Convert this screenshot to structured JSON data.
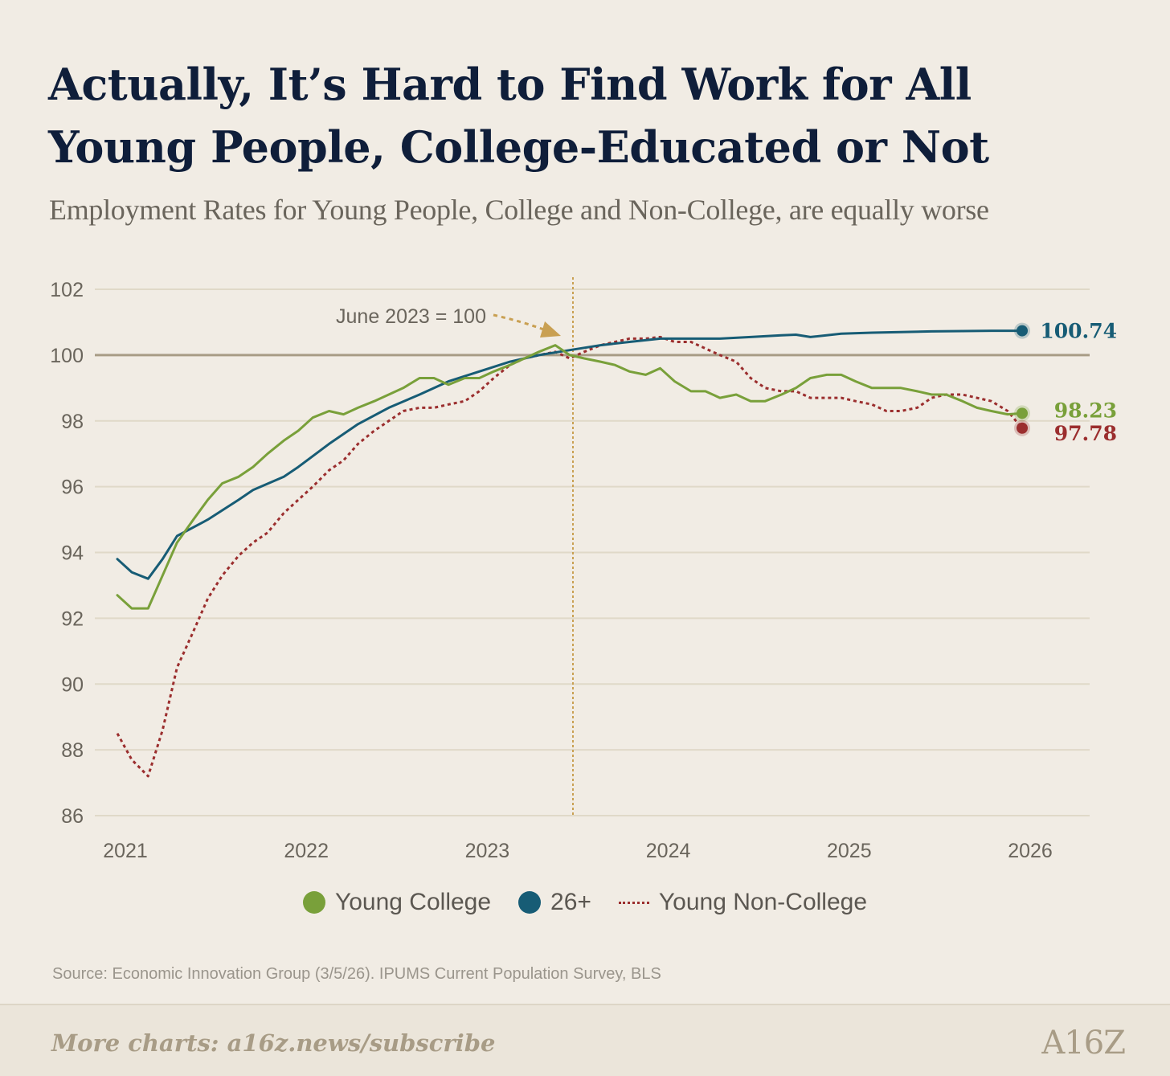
{
  "header": {
    "title": "Actually, It’s Hard to Find Work for All Young People, College-Educated or Not",
    "subtitle": "Employment Rates for Young People, College and Non-College, are equally worse"
  },
  "chart_data": {
    "type": "line",
    "title": "Actually, It’s Hard to Find Work for All Young People, College-Educated or Not",
    "subtitle": "Employment Rates for Young People, College and Non-College, are equally worse",
    "xlabel": "",
    "ylabel": "",
    "xlim": [
      2021,
      2026.12
    ],
    "ylim": [
      86,
      102
    ],
    "x_ticks": [
      2021,
      2022,
      2023,
      2024,
      2025,
      2026
    ],
    "y_ticks": [
      86,
      88,
      90,
      92,
      94,
      96,
      98,
      100,
      102
    ],
    "grid": "horizontal",
    "reference_line": {
      "y": 100
    },
    "vertical_marker": {
      "x": 2023.5
    },
    "annotation": {
      "text": "June 2023 = 100"
    },
    "legend_position": "bottom-center",
    "series": [
      {
        "name": "Young College",
        "color": "#79a03a",
        "style": "solid",
        "end_label": "98.23",
        "points": [
          [
            2021.0,
            92.7
          ],
          [
            2021.08,
            92.3
          ],
          [
            2021.17,
            92.3
          ],
          [
            2021.25,
            93.3
          ],
          [
            2021.33,
            94.3
          ],
          [
            2021.42,
            95.0
          ],
          [
            2021.5,
            95.6
          ],
          [
            2021.58,
            96.1
          ],
          [
            2021.67,
            96.3
          ],
          [
            2021.75,
            96.6
          ],
          [
            2021.83,
            97.0
          ],
          [
            2021.92,
            97.4
          ],
          [
            2022.0,
            97.7
          ],
          [
            2022.08,
            98.1
          ],
          [
            2022.17,
            98.3
          ],
          [
            2022.25,
            98.2
          ],
          [
            2022.33,
            98.4
          ],
          [
            2022.42,
            98.6
          ],
          [
            2022.5,
            98.8
          ],
          [
            2022.58,
            99.0
          ],
          [
            2022.67,
            99.3
          ],
          [
            2022.75,
            99.3
          ],
          [
            2022.83,
            99.1
          ],
          [
            2022.92,
            99.3
          ],
          [
            2023.0,
            99.3
          ],
          [
            2023.08,
            99.5
          ],
          [
            2023.17,
            99.7
          ],
          [
            2023.25,
            99.9
          ],
          [
            2023.33,
            100.1
          ],
          [
            2023.42,
            100.3
          ],
          [
            2023.5,
            100.0
          ],
          [
            2023.58,
            99.9
          ],
          [
            2023.67,
            99.8
          ],
          [
            2023.75,
            99.7
          ],
          [
            2023.83,
            99.5
          ],
          [
            2023.92,
            99.4
          ],
          [
            2024.0,
            99.6
          ],
          [
            2024.08,
            99.2
          ],
          [
            2024.17,
            98.9
          ],
          [
            2024.25,
            98.9
          ],
          [
            2024.33,
            98.7
          ],
          [
            2024.42,
            98.8
          ],
          [
            2024.5,
            98.6
          ],
          [
            2024.58,
            98.6
          ],
          [
            2024.67,
            98.8
          ],
          [
            2024.75,
            99.0
          ],
          [
            2024.83,
            99.3
          ],
          [
            2024.92,
            99.4
          ],
          [
            2025.0,
            99.4
          ],
          [
            2025.08,
            99.2
          ],
          [
            2025.17,
            99.0
          ],
          [
            2025.25,
            99.0
          ],
          [
            2025.33,
            99.0
          ],
          [
            2025.42,
            98.9
          ],
          [
            2025.5,
            98.8
          ],
          [
            2025.58,
            98.8
          ],
          [
            2025.67,
            98.6
          ],
          [
            2025.75,
            98.4
          ],
          [
            2025.83,
            98.3
          ],
          [
            2025.92,
            98.2
          ],
          [
            2026.0,
            98.23
          ]
        ]
      },
      {
        "name": "26+",
        "color": "#175c75",
        "style": "solid",
        "end_label": "100.74",
        "points": [
          [
            2021.0,
            93.8
          ],
          [
            2021.08,
            93.4
          ],
          [
            2021.17,
            93.2
          ],
          [
            2021.25,
            93.8
          ],
          [
            2021.33,
            94.5
          ],
          [
            2021.5,
            95.0
          ],
          [
            2021.67,
            95.6
          ],
          [
            2021.75,
            95.9
          ],
          [
            2021.92,
            96.3
          ],
          [
            2022.0,
            96.6
          ],
          [
            2022.17,
            97.3
          ],
          [
            2022.33,
            97.9
          ],
          [
            2022.5,
            98.4
          ],
          [
            2022.67,
            98.8
          ],
          [
            2022.83,
            99.2
          ],
          [
            2023.0,
            99.5
          ],
          [
            2023.17,
            99.8
          ],
          [
            2023.33,
            100.0
          ],
          [
            2023.5,
            100.15
          ],
          [
            2023.67,
            100.3
          ],
          [
            2023.83,
            100.4
          ],
          [
            2024.0,
            100.5
          ],
          [
            2024.17,
            100.5
          ],
          [
            2024.33,
            100.5
          ],
          [
            2024.5,
            100.55
          ],
          [
            2024.67,
            100.6
          ],
          [
            2024.75,
            100.62
          ],
          [
            2024.83,
            100.55
          ],
          [
            2025.0,
            100.65
          ],
          [
            2025.17,
            100.68
          ],
          [
            2025.33,
            100.7
          ],
          [
            2025.5,
            100.72
          ],
          [
            2025.67,
            100.73
          ],
          [
            2025.83,
            100.74
          ],
          [
            2026.0,
            100.74
          ]
        ]
      },
      {
        "name": "Young Non-College",
        "color": "#9b2e2e",
        "style": "dotted",
        "end_label": "97.78",
        "points": [
          [
            2021.0,
            88.5
          ],
          [
            2021.08,
            87.7
          ],
          [
            2021.17,
            87.2
          ],
          [
            2021.25,
            88.6
          ],
          [
            2021.33,
            90.5
          ],
          [
            2021.42,
            91.6
          ],
          [
            2021.5,
            92.6
          ],
          [
            2021.58,
            93.3
          ],
          [
            2021.67,
            93.9
          ],
          [
            2021.75,
            94.3
          ],
          [
            2021.83,
            94.6
          ],
          [
            2021.92,
            95.2
          ],
          [
            2022.0,
            95.6
          ],
          [
            2022.08,
            96.0
          ],
          [
            2022.17,
            96.5
          ],
          [
            2022.25,
            96.8
          ],
          [
            2022.33,
            97.3
          ],
          [
            2022.42,
            97.7
          ],
          [
            2022.5,
            98.0
          ],
          [
            2022.58,
            98.3
          ],
          [
            2022.67,
            98.4
          ],
          [
            2022.75,
            98.4
          ],
          [
            2022.83,
            98.5
          ],
          [
            2022.92,
            98.6
          ],
          [
            2023.0,
            98.9
          ],
          [
            2023.08,
            99.3
          ],
          [
            2023.17,
            99.7
          ],
          [
            2023.25,
            99.9
          ],
          [
            2023.33,
            100.0
          ],
          [
            2023.42,
            100.1
          ],
          [
            2023.5,
            99.9
          ],
          [
            2023.58,
            100.1
          ],
          [
            2023.67,
            100.3
          ],
          [
            2023.75,
            100.4
          ],
          [
            2023.83,
            100.5
          ],
          [
            2023.92,
            100.5
          ],
          [
            2024.0,
            100.55
          ],
          [
            2024.08,
            100.4
          ],
          [
            2024.17,
            100.4
          ],
          [
            2024.25,
            100.2
          ],
          [
            2024.33,
            100.0
          ],
          [
            2024.42,
            99.8
          ],
          [
            2024.5,
            99.3
          ],
          [
            2024.58,
            99.0
          ],
          [
            2024.67,
            98.9
          ],
          [
            2024.75,
            98.9
          ],
          [
            2024.83,
            98.7
          ],
          [
            2024.92,
            98.7
          ],
          [
            2025.0,
            98.7
          ],
          [
            2025.08,
            98.6
          ],
          [
            2025.17,
            98.5
          ],
          [
            2025.25,
            98.3
          ],
          [
            2025.33,
            98.3
          ],
          [
            2025.42,
            98.4
          ],
          [
            2025.5,
            98.7
          ],
          [
            2025.58,
            98.8
          ],
          [
            2025.67,
            98.8
          ],
          [
            2025.75,
            98.7
          ],
          [
            2025.83,
            98.6
          ],
          [
            2025.92,
            98.3
          ],
          [
            2026.0,
            97.78
          ]
        ]
      }
    ]
  },
  "footer": {
    "source": "Source: Economic Innovation Group (3/5/26). IPUMS Current Population Survey, BLS",
    "link": "More charts: a16z.news/subscribe",
    "logo": "A16Z"
  },
  "colors": {
    "background": "#f1ece4",
    "grid": "#e0d9c8",
    "reference_line": "#a89c86",
    "vertical_marker": "#c9a052",
    "axis_text": "#6a655c",
    "title": "#0f1e3a"
  }
}
